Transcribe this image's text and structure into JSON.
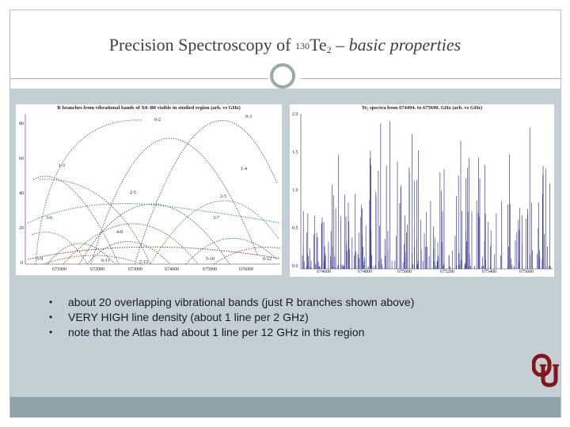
{
  "title": {
    "main": "Precision Spectroscopy of ",
    "isotope": "130",
    "species": "Te",
    "subscript": "2",
    "dash": " – ",
    "italic": "basic properties"
  },
  "colors": {
    "panel": "#c3cfd4",
    "band": "#8fa3a9",
    "rule": "#a7b4b8",
    "spectrum": "#3a3f9e"
  },
  "left_plot": {
    "caption": "R branches from vibrational bands of X0–B0 visible in studied region (arb. vs GHz)",
    "y_ticks": [
      "80",
      "60",
      "40",
      "20",
      "0"
    ],
    "x_ticks": [
      "671000",
      "672000",
      "673000",
      "674000",
      "675000",
      "676000"
    ],
    "band_labels": [
      "0-2",
      "0-3",
      "1-3",
      "1-4",
      "2-5",
      "2-5",
      "3-6",
      "3-7",
      "4-8",
      "5-9",
      "5-10",
      "6-11",
      "6-12",
      "7-13"
    ]
  },
  "right_plot": {
    "caption": "Te₂ spectra from 674494. to 675690. GHz (arb. vs GHz)",
    "y_ticks": [
      "2.0",
      "1.5",
      "1.0",
      "0.5",
      "0.0"
    ],
    "x_ticks": [
      "674600",
      "674800",
      "675000",
      "675200",
      "675400",
      "675600"
    ]
  },
  "bullets": [
    "about 20 overlapping vibrational bands (just R branches shown above)",
    "VERY HIGH line density (about 1 line per 2 GHz)",
    "note that the Atlas had about 1 line per 12 GHz in this region"
  ],
  "bullet_symbol": "•",
  "logo": {
    "icon": "ou-logo-icon",
    "color": "#841617"
  }
}
